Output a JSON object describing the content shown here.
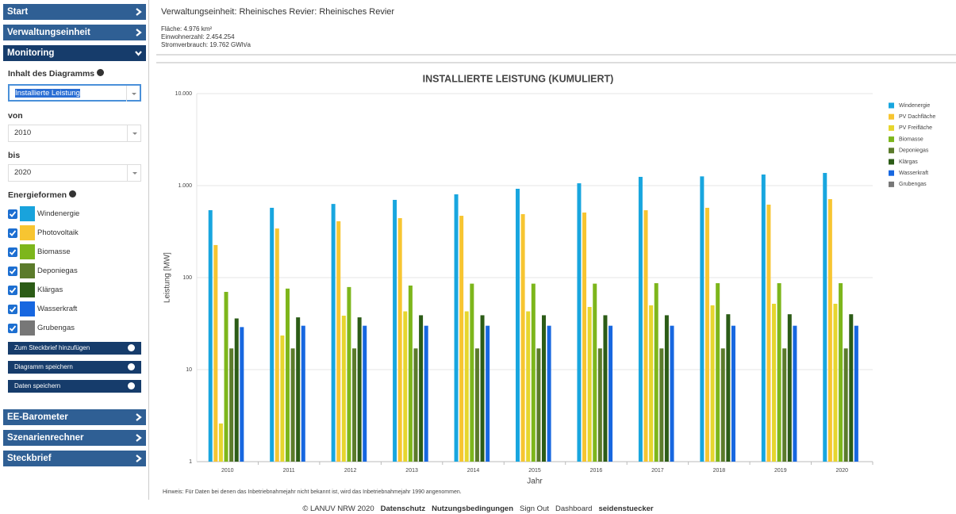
{
  "sidebar": {
    "nav_top": [
      "Start",
      "Verwaltungseinheit",
      "Monitoring"
    ],
    "content_label": "Inhalt des Diagramms",
    "content_value": "Installierte Leistung",
    "from_label": "von",
    "from_value": "2010",
    "to_label": "bis",
    "to_value": "2020",
    "energy_label": "Energieformen",
    "energies": [
      "Windenergie",
      "Photovoltaik",
      "Biomasse",
      "Deponiegas",
      "Klärgas",
      "Wasserkraft",
      "Grubengas"
    ],
    "buttons": [
      "Zum Steckbrief hinzufügen",
      "Diagramm speichern",
      "Daten speichern"
    ],
    "nav_bottom": [
      "EE-Barometer",
      "Szenarienrechner",
      "Steckbrief"
    ]
  },
  "header": {
    "title": "Verwaltungseinheit: Rheinisches Revier: Rheinisches Revier",
    "area": "Fläche: 4.976 km²",
    "population": "Einwohnerzahl: 2.454.254",
    "consumption": "Stromverbrauch: 19.762 GWh/a"
  },
  "chart_data": {
    "type": "bar",
    "title": "INSTALLIERTE LEISTUNG (KUMULIERT)",
    "x_label": "Jahr",
    "y_label": "Leistung [MW]",
    "log_scale": true,
    "grid": true,
    "legend": "right",
    "note": "Hinweis: Für Daten bei denen das Inbetriebnahmejahr nicht bekannt ist, wird das Inbetriebnahmejahr 1990 angenommen.",
    "categories": [
      "2010",
      "2011",
      "2012",
      "2013",
      "2014",
      "2015",
      "2016",
      "2017",
      "2018",
      "2019",
      "2020"
    ],
    "ylim": [
      1,
      10000
    ],
    "yticks": [
      1,
      10,
      100,
      {
        "value": 1000,
        "label": "1.000"
      },
      {
        "value": 10000,
        "label": "10.000"
      }
    ],
    "series": [
      {
        "name": "Windenergie",
        "color": "#18a6df",
        "values": [
          541,
          574,
          632,
          700,
          804,
          924,
          1060,
          1245,
          1260,
          1320,
          1373
        ]
      },
      {
        "name": "PV Dachfläche",
        "color": "#f7c531",
        "values": [
          226,
          342,
          410,
          443,
          470,
          490,
          510,
          540,
          574,
          621,
          713
        ]
      },
      {
        "name": "PV Freifläche",
        "color": "#e6d62e",
        "values": [
          2.6,
          23.5,
          38.6,
          43,
          43,
          43,
          48,
          50,
          50,
          52,
          52
        ]
      },
      {
        "name": "Biomasse",
        "color": "#7db61c",
        "values": [
          70,
          76,
          79,
          82,
          86,
          86,
          86,
          87,
          87,
          87,
          87
        ]
      },
      {
        "name": "Deponiegas",
        "color": "#5b7b2b",
        "values": [
          17,
          17,
          17,
          17,
          17,
          17,
          17,
          17,
          17,
          17,
          17
        ]
      },
      {
        "name": "Klärgas",
        "color": "#2c5c17",
        "values": [
          36,
          37,
          37,
          39,
          39,
          39,
          39,
          39,
          40,
          40,
          40
        ]
      },
      {
        "name": "Wasserkraft",
        "color": "#1767e0",
        "values": [
          29,
          30,
          30,
          30,
          30,
          30,
          30,
          30,
          30,
          30,
          30
        ]
      },
      {
        "name": "Grubengas",
        "color": "#777777",
        "values": [
          null,
          null,
          null,
          null,
          null,
          null,
          null,
          null,
          null,
          null,
          null
        ]
      }
    ]
  },
  "footer": [
    "© LANUV NRW 2020",
    "Datenschutz",
    "Nutzungsbedingungen",
    "Sign Out",
    "Dashboard",
    "seidenstuecker"
  ]
}
